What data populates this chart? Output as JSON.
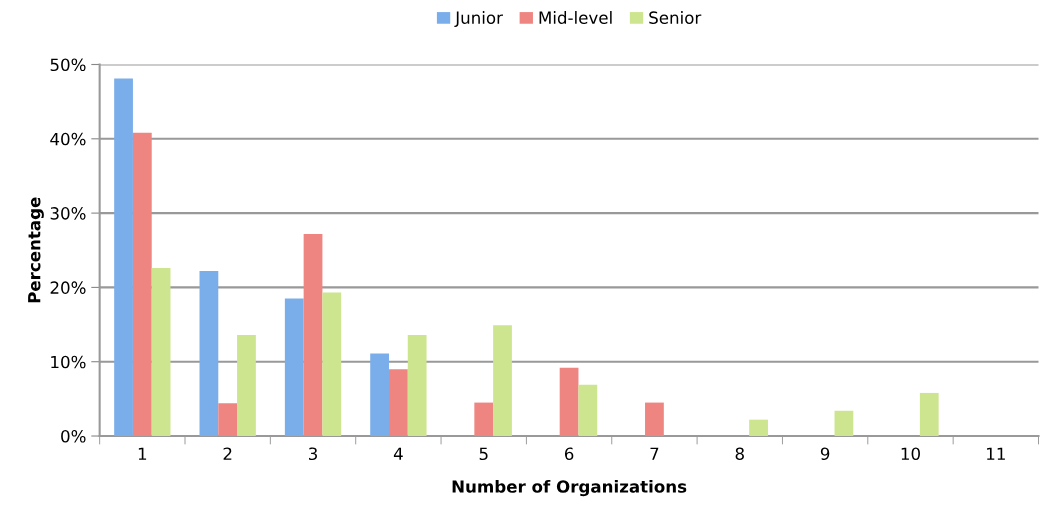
{
  "chart_data": {
    "type": "bar",
    "xlabel": "Number of Organizations",
    "ylabel": "Percentage",
    "categories": [
      "1",
      "2",
      "3",
      "4",
      "5",
      "6",
      "7",
      "8",
      "9",
      "10",
      "11"
    ],
    "series": [
      {
        "name": "Junior",
        "color": "#7aaeea",
        "values": [
          48.1,
          22.2,
          18.5,
          11.1,
          0,
          0,
          0,
          0,
          0,
          0,
          0
        ]
      },
      {
        "name": "Mid-level",
        "color": "#ee8580",
        "values": [
          40.8,
          4.4,
          27.2,
          9.0,
          4.5,
          9.2,
          4.5,
          0,
          0,
          0,
          0
        ]
      },
      {
        "name": "Senior",
        "color": "#cce58e",
        "values": [
          22.6,
          13.6,
          19.3,
          13.6,
          14.9,
          6.9,
          0,
          2.2,
          3.4,
          5.8,
          0
        ]
      }
    ],
    "ylim": [
      0,
      50
    ],
    "yticks": [
      {
        "value": 0,
        "label": "0%"
      },
      {
        "value": 10,
        "label": "10%"
      },
      {
        "value": 20,
        "label": "20%"
      },
      {
        "value": 30,
        "label": "30%"
      },
      {
        "value": 40,
        "label": "40%"
      },
      {
        "value": 50,
        "label": "50%"
      }
    ],
    "grid": "y",
    "legend": "top"
  }
}
